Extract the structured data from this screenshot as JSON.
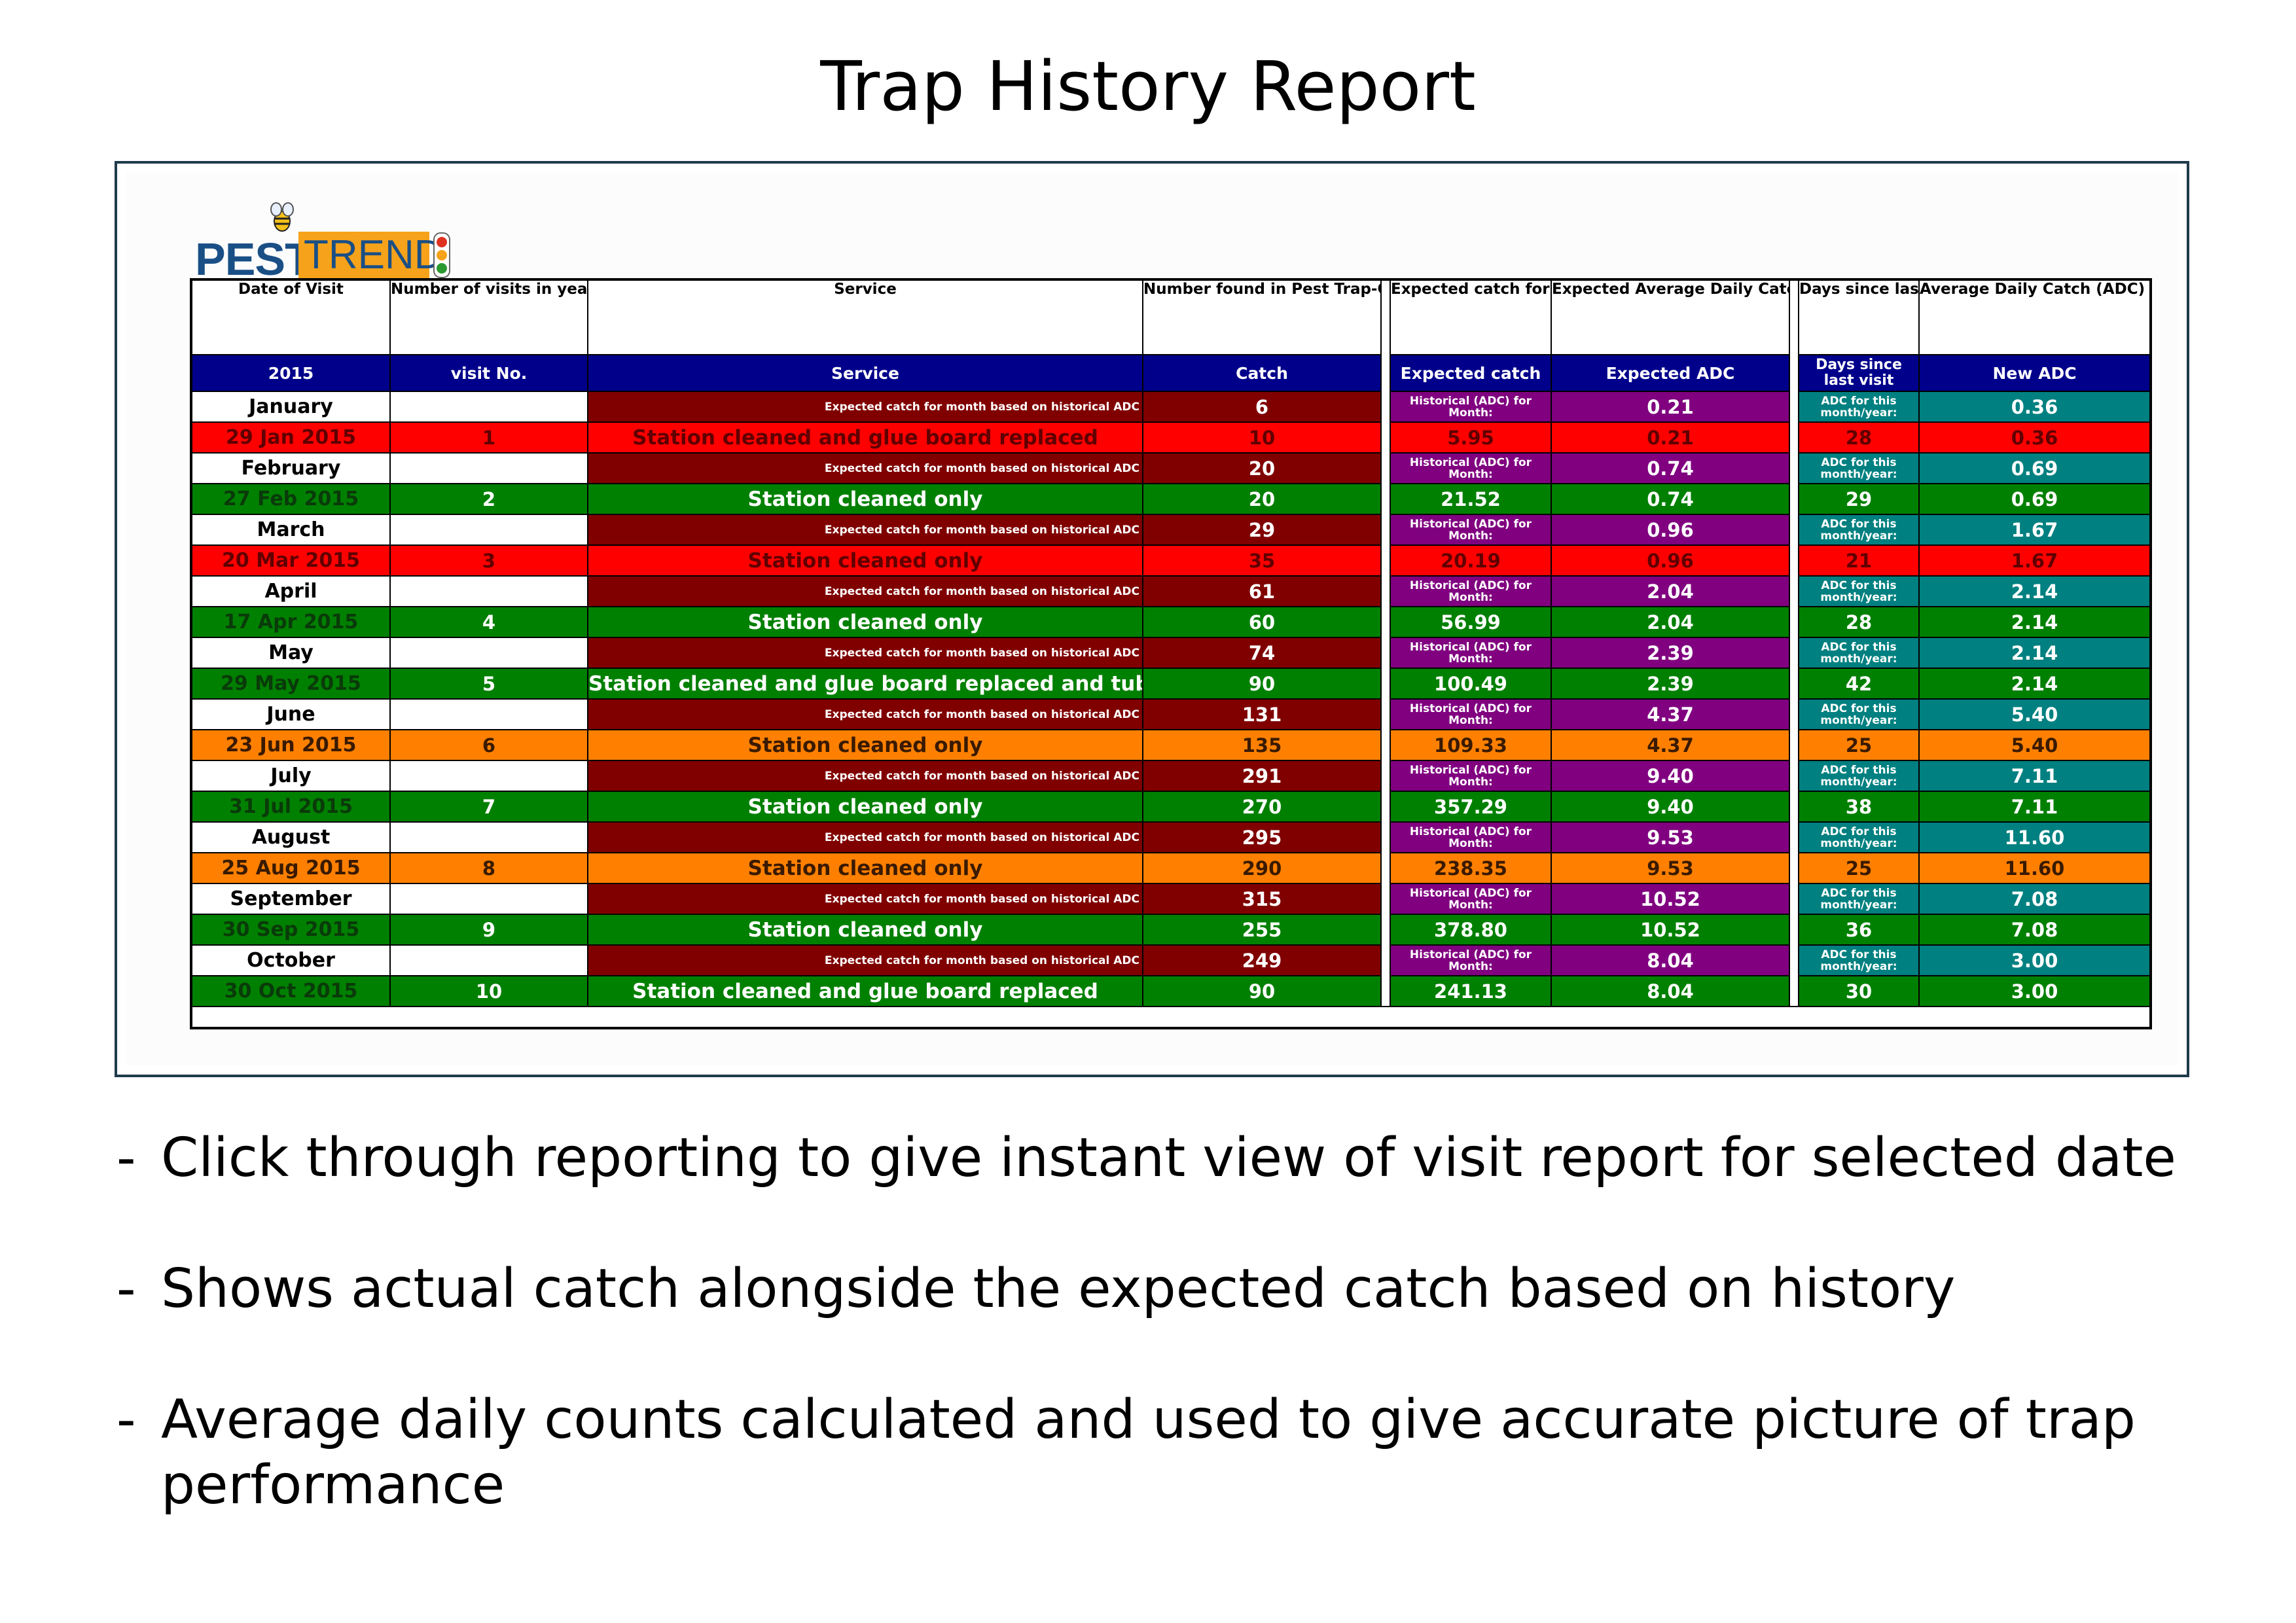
{
  "title": "Trap History Report",
  "logo": {
    "part1": "PEST",
    "part2": "TREND"
  },
  "colors": {
    "header_bar": "#00008b",
    "month_row": "#800000",
    "historical": "#800080",
    "since_visit": "#008080",
    "status_red": "#ff0000",
    "status_green": "#008000",
    "status_orange": "#ff8000"
  },
  "table": {
    "headers": {
      "date": "Date of Visit",
      "visits": "Number of visits in year",
      "service": "Service",
      "found": "Number found in Pest Trap-Catch",
      "expected_catch": "Expected catch for same period length based on historical records for this trap",
      "expected_adc": "Expected Average Daily Catch(ADC) for month, based on historical records for this trap",
      "days_since": "Days since last visit",
      "new_adc": "Average Daily Catch (ADC) based on new catch and number of days since last visit"
    },
    "subheaders": {
      "year": "2015",
      "visit_no": "visit No.",
      "service": "Service",
      "catch": "Catch",
      "expected_catch": "Expected catch",
      "expected_adc": "Expected ADC",
      "days_since": "Days since last visit",
      "new_adc": "New ADC"
    },
    "labels": {
      "expected_month": "Expected catch for month based on historical ADC",
      "historical": "Historical (ADC) for Month:",
      "adc_this_month": "ADC for this month/year:"
    },
    "months": [
      {
        "month": "January",
        "expected_catch": "6",
        "hist_adc": "0.21",
        "month_adc": "0.36",
        "visit": {
          "date": "29 Jan 2015",
          "no": "1",
          "service": "Station cleaned and glue board replaced",
          "catch": "10",
          "expected": "5.95",
          "adc": "0.21",
          "days": "28",
          "new_adc": "0.36",
          "status": "red"
        }
      },
      {
        "month": "February",
        "expected_catch": "20",
        "hist_adc": "0.74",
        "month_adc": "0.69",
        "visit": {
          "date": "27 Feb 2015",
          "no": "2",
          "service": "Station cleaned only",
          "catch": "20",
          "expected": "21.52",
          "adc": "0.74",
          "days": "29",
          "new_adc": "0.69",
          "status": "green"
        }
      },
      {
        "month": "March",
        "expected_catch": "29",
        "hist_adc": "0.96",
        "month_adc": "1.67",
        "visit": {
          "date": "20 Mar 2015",
          "no": "3",
          "service": "Station cleaned only",
          "catch": "35",
          "expected": "20.19",
          "adc": "0.96",
          "days": "21",
          "new_adc": "1.67",
          "status": "red"
        }
      },
      {
        "month": "April",
        "expected_catch": "61",
        "hist_adc": "2.04",
        "month_adc": "2.14",
        "visit": {
          "date": "17 Apr 2015",
          "no": "4",
          "service": "Station cleaned only",
          "catch": "60",
          "expected": "56.99",
          "adc": "2.04",
          "days": "28",
          "new_adc": "2.14",
          "status": "green"
        }
      },
      {
        "month": "May",
        "expected_catch": "74",
        "hist_adc": "2.39",
        "month_adc": "2.14",
        "visit": {
          "date": "29 May 2015",
          "no": "5",
          "service": "Station cleaned and glue board replaced and tube change",
          "catch": "90",
          "expected": "100.49",
          "adc": "2.39",
          "days": "42",
          "new_adc": "2.14",
          "status": "green"
        }
      },
      {
        "month": "June",
        "expected_catch": "131",
        "hist_adc": "4.37",
        "month_adc": "5.40",
        "visit": {
          "date": "23 Jun 2015",
          "no": "6",
          "service": "Station cleaned only",
          "catch": "135",
          "expected": "109.33",
          "adc": "4.37",
          "days": "25",
          "new_adc": "5.40",
          "status": "orange"
        }
      },
      {
        "month": "July",
        "expected_catch": "291",
        "hist_adc": "9.40",
        "month_adc": "7.11",
        "visit": {
          "date": "31 Jul 2015",
          "no": "7",
          "service": "Station cleaned only",
          "catch": "270",
          "expected": "357.29",
          "adc": "9.40",
          "days": "38",
          "new_adc": "7.11",
          "status": "green"
        }
      },
      {
        "month": "August",
        "expected_catch": "295",
        "hist_adc": "9.53",
        "month_adc": "11.60",
        "visit": {
          "date": "25 Aug 2015",
          "no": "8",
          "service": "Station cleaned only",
          "catch": "290",
          "expected": "238.35",
          "adc": "9.53",
          "days": "25",
          "new_adc": "11.60",
          "status": "orange"
        }
      },
      {
        "month": "September",
        "expected_catch": "315",
        "hist_adc": "10.52",
        "month_adc": "7.08",
        "visit": {
          "date": "30 Sep 2015",
          "no": "9",
          "service": "Station cleaned only",
          "catch": "255",
          "expected": "378.80",
          "adc": "10.52",
          "days": "36",
          "new_adc": "7.08",
          "status": "green"
        }
      },
      {
        "month": "October",
        "expected_catch": "249",
        "hist_adc": "8.04",
        "month_adc": "3.00",
        "visit": {
          "date": "30 Oct 2015",
          "no": "10",
          "service": "Station cleaned and glue board replaced",
          "catch": "90",
          "expected": "241.13",
          "adc": "8.04",
          "days": "30",
          "new_adc": "3.00",
          "status": "green"
        }
      }
    ]
  },
  "bullets": [
    "Click through reporting to give instant view of visit report for selected date",
    "Shows actual catch alongside the expected catch based on history",
    "Average daily counts calculated and used to give accurate picture of trap performance"
  ]
}
